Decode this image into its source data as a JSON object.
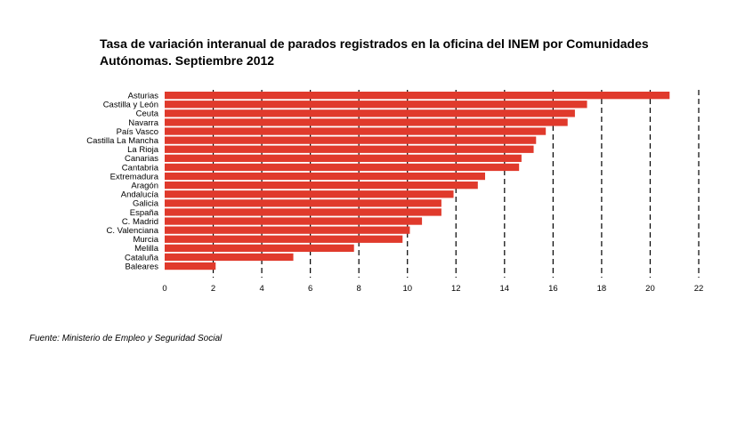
{
  "title": {
    "line1": "Tasa de variación interanual de parados registrados en la oficina del INEM por Comunidades",
    "line2": "Autónomas.  Septiembre 2012"
  },
  "source": "Fuente: Ministerio de Empleo y Seguridad Social",
  "colors": {
    "bar": "#e03a2c",
    "grid": "#000000"
  },
  "chart_data": {
    "type": "bar",
    "orientation": "horizontal",
    "title": "Tasa de variación interanual de parados registrados en la oficina del INEM por Comunidades Autónomas.  Septiembre 2012",
    "categories": [
      "Asturias",
      "Castilla y León",
      "Ceuta",
      "Navarra",
      "País Vasco",
      "Castilla La Mancha",
      "La Rioja",
      "Canarias",
      "Cantabria",
      "Extremadura",
      "Aragón",
      "Andalucía",
      "Galicia",
      "España",
      "C. Madrid",
      "C. Valenciana",
      "Murcia",
      "Melilla",
      "Cataluña",
      "Baleares"
    ],
    "values": [
      20.8,
      17.4,
      16.9,
      16.6,
      15.7,
      15.3,
      15.2,
      14.7,
      14.6,
      13.2,
      12.9,
      11.9,
      11.4,
      11.4,
      10.6,
      10.1,
      9.8,
      7.8,
      5.3,
      2.1
    ],
    "xlim": [
      0,
      22
    ],
    "xticks": [
      0,
      2,
      4,
      6,
      8,
      10,
      12,
      14,
      16,
      18,
      20,
      22
    ],
    "grid": "vertical-dashed",
    "xlabel": "",
    "ylabel": ""
  }
}
